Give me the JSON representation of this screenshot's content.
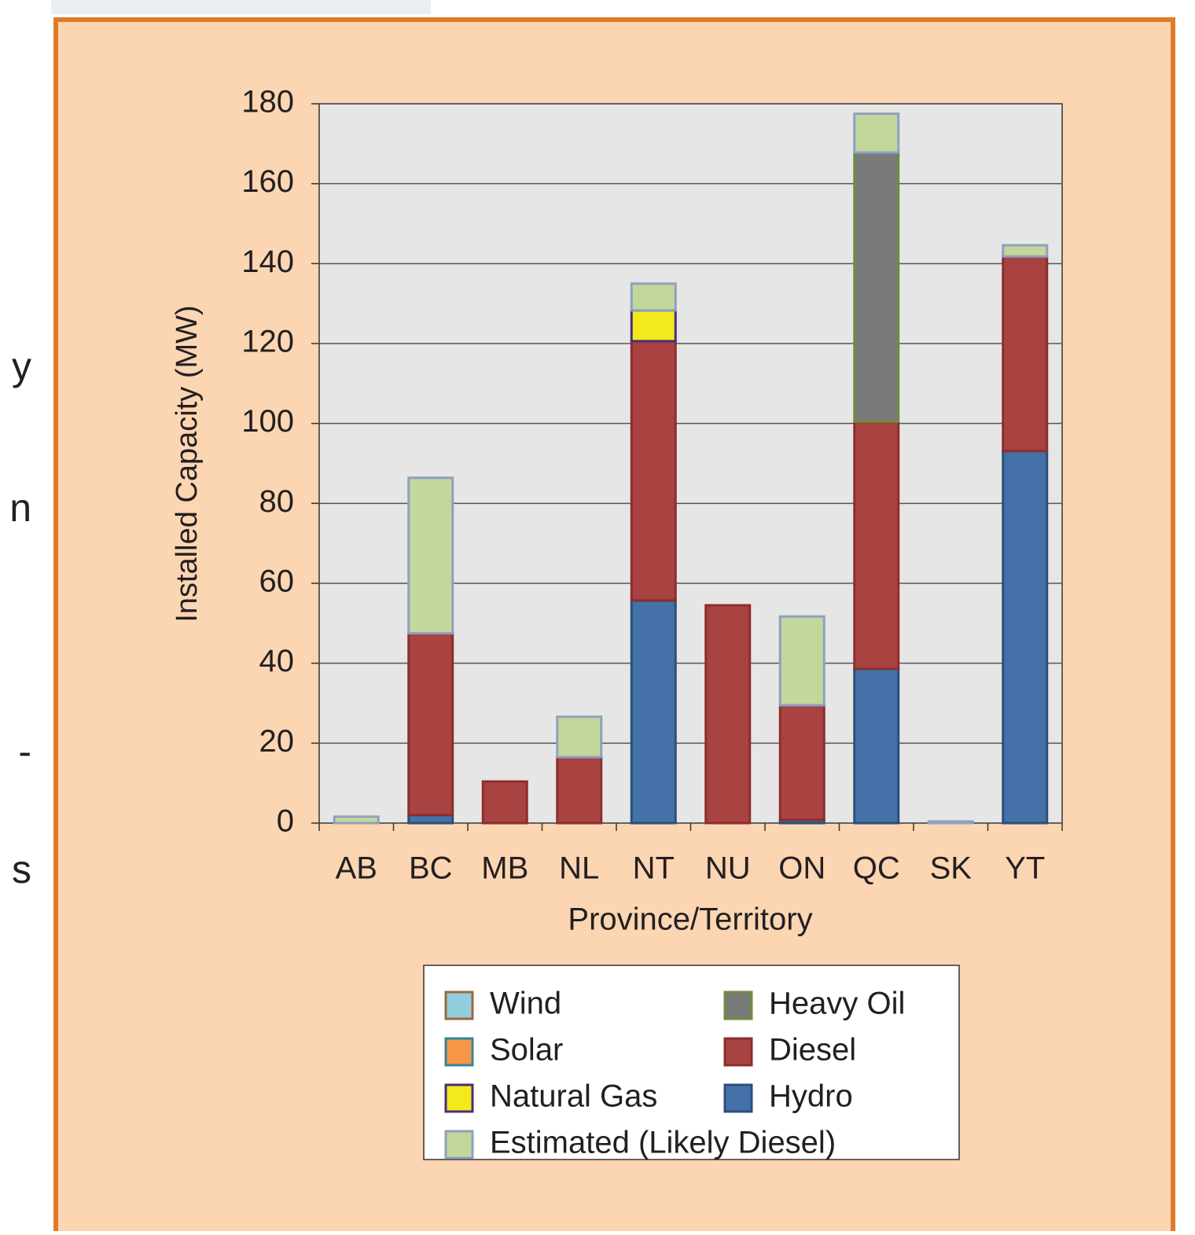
{
  "side_text": [
    "y",
    "n",
    "-",
    "s"
  ],
  "chart_data": {
    "type": "stacked_bar",
    "ylabel": "Installed Capacity (MW)",
    "xlabel": "Province/Territory",
    "categories": [
      "AB",
      "BC",
      "MB",
      "NL",
      "NT",
      "NU",
      "ON",
      "QC",
      "SK",
      "YT"
    ],
    "ylim": [
      0,
      180
    ],
    "yticks": [
      0,
      20,
      40,
      60,
      80,
      100,
      120,
      140,
      160,
      180
    ],
    "grid": true,
    "series": [
      {
        "name": "Hydro",
        "color": "#4471a8",
        "edgecolor": "#2c4f7a",
        "values": [
          0,
          2,
          0,
          0,
          55.7,
          0,
          0.8,
          38.6,
          0,
          93.1
        ]
      },
      {
        "name": "Diesel",
        "color": "#a84341",
        "edgecolor": "#8b2e2e",
        "values": [
          0,
          45.5,
          10.4,
          16.5,
          64.9,
          54.5,
          28.7,
          61.9,
          0,
          48.7
        ]
      },
      {
        "name": "Heavy Oil",
        "color": "#7a7a7a",
        "edgecolor": "#6b8e3a",
        "values": [
          0,
          0,
          0,
          0,
          0,
          0,
          0,
          67.3,
          0,
          0
        ]
      },
      {
        "name": "Natural Gas",
        "color": "#f2ea1c",
        "edgecolor": "#4b2c7a",
        "values": [
          0,
          0,
          0,
          0,
          7.7,
          0,
          0,
          0,
          0,
          0
        ]
      },
      {
        "name": "Solar",
        "color": "#f79646",
        "edgecolor": "#31859c",
        "values": [
          0,
          0,
          0,
          0,
          0,
          0,
          0,
          0,
          0,
          0
        ]
      },
      {
        "name": "Wind",
        "color": "#92cddc",
        "edgecolor": "#9c6a3a",
        "values": [
          0,
          0,
          0,
          0,
          0,
          0,
          0,
          0,
          0,
          0
        ]
      },
      {
        "name": "Estimated (Likely Diesel)",
        "color": "#c4d79b",
        "edgecolor": "#8ea0c0",
        "values": [
          1.6,
          38.9,
          0,
          10.1,
          6.7,
          0,
          22.2,
          9.7,
          0.4,
          2.8
        ]
      }
    ]
  }
}
